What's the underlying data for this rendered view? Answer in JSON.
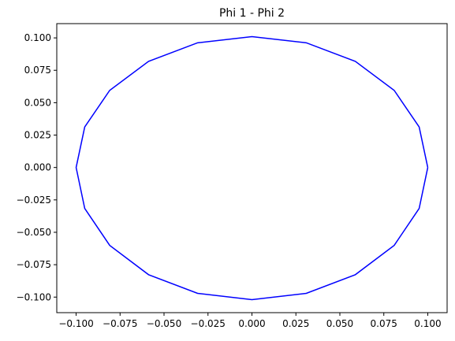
{
  "chart_data": {
    "type": "line",
    "title": "Phi 1 - Phi 2",
    "xlabel": "",
    "ylabel": "",
    "xlim": [
      -0.111,
      0.111
    ],
    "ylim": [
      -0.112,
      0.111
    ],
    "xticks": [
      -0.1,
      -0.075,
      -0.05,
      -0.025,
      0.0,
      0.025,
      0.05,
      0.075,
      0.1
    ],
    "xtick_labels": [
      "−0.100",
      "−0.075",
      "−0.050",
      "−0.025",
      "0.000",
      "0.025",
      "0.050",
      "0.075",
      "0.100"
    ],
    "yticks": [
      0.1,
      0.075,
      0.05,
      0.025,
      0.0,
      -0.025,
      -0.05,
      -0.075,
      -0.1
    ],
    "ytick_labels": [
      "0.100",
      "0.075",
      "0.050",
      "0.025",
      "0.000",
      "−0.025",
      "−0.050",
      "−0.075",
      "−0.100"
    ],
    "grid": false,
    "legend": "none",
    "series": [
      {
        "color": "#0000ff",
        "points": [
          [
            0.1,
            0.0
          ],
          [
            0.0951,
            0.0313
          ],
          [
            0.0809,
            0.0595
          ],
          [
            0.0588,
            0.0819
          ],
          [
            0.0309,
            0.0962
          ],
          [
            0.0,
            0.101
          ],
          [
            -0.0309,
            0.0962
          ],
          [
            -0.0588,
            0.0819
          ],
          [
            -0.0809,
            0.0595
          ],
          [
            -0.0951,
            0.0313
          ],
          [
            -0.1,
            0.0
          ],
          [
            -0.0951,
            -0.0316
          ],
          [
            -0.0809,
            -0.0601
          ],
          [
            -0.0588,
            -0.0827
          ],
          [
            -0.0309,
            -0.0971
          ],
          [
            0.0,
            -0.102
          ],
          [
            0.0309,
            -0.0971
          ],
          [
            0.0588,
            -0.0827
          ],
          [
            0.0809,
            -0.0601
          ],
          [
            0.0951,
            -0.0316
          ],
          [
            0.1,
            0.0
          ]
        ]
      }
    ]
  }
}
